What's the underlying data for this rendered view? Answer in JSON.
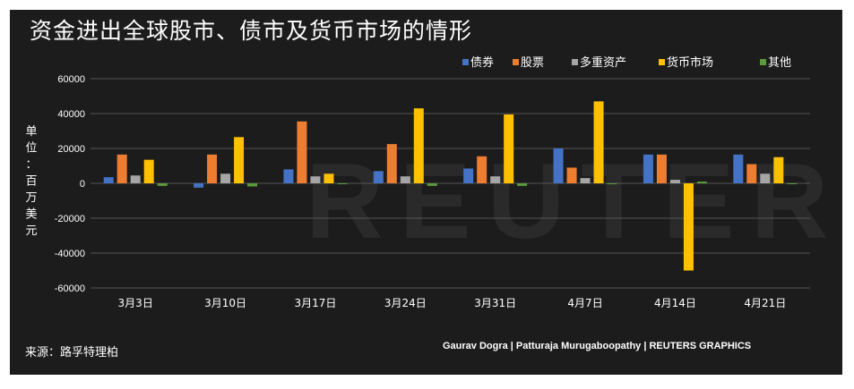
{
  "title": "资金进出全球股市、债市及货币市场的情形",
  "source": "来源：路孚特理柏",
  "credits": "Gaurav Dogra | Patturaja Murugaboopathy | REUTERS GRAPHICS",
  "watermark": "REUTERS",
  "colors": {
    "background": "#1c1c1c",
    "grid": "#555555",
    "series": [
      "#4472c4",
      "#ed7d31",
      "#a5a5a5",
      "#ffc000",
      "#5b9a3c"
    ]
  },
  "chart_data": {
    "type": "bar",
    "ylabel": "单位：百万美元",
    "ylim": [
      -60000,
      60000
    ],
    "yticks": [
      60000,
      40000,
      20000,
      0,
      -20000,
      -40000,
      -60000
    ],
    "grid": true,
    "legend_position": "top-right",
    "categories": [
      "3月3日",
      "3月10日",
      "3月17日",
      "3月24日",
      "3月31日",
      "4月7日",
      "4月14日",
      "4月21日"
    ],
    "series": [
      {
        "name": "债券",
        "values": [
          3500,
          -2500,
          8000,
          7000,
          8500,
          20000,
          16500,
          16500
        ]
      },
      {
        "name": "股票",
        "values": [
          16500,
          16500,
          35500,
          22500,
          15500,
          9000,
          16500,
          11000
        ]
      },
      {
        "name": "多重资产",
        "values": [
          4500,
          5500,
          4000,
          4000,
          4000,
          3000,
          2000,
          5500
        ]
      },
      {
        "name": "货币市场",
        "values": [
          13500,
          26500,
          5500,
          43000,
          39500,
          47000,
          -50000,
          15000
        ]
      },
      {
        "name": "其他",
        "values": [
          -1500,
          -1800,
          -500,
          -1500,
          -1500,
          -500,
          1000,
          -500
        ]
      }
    ]
  }
}
